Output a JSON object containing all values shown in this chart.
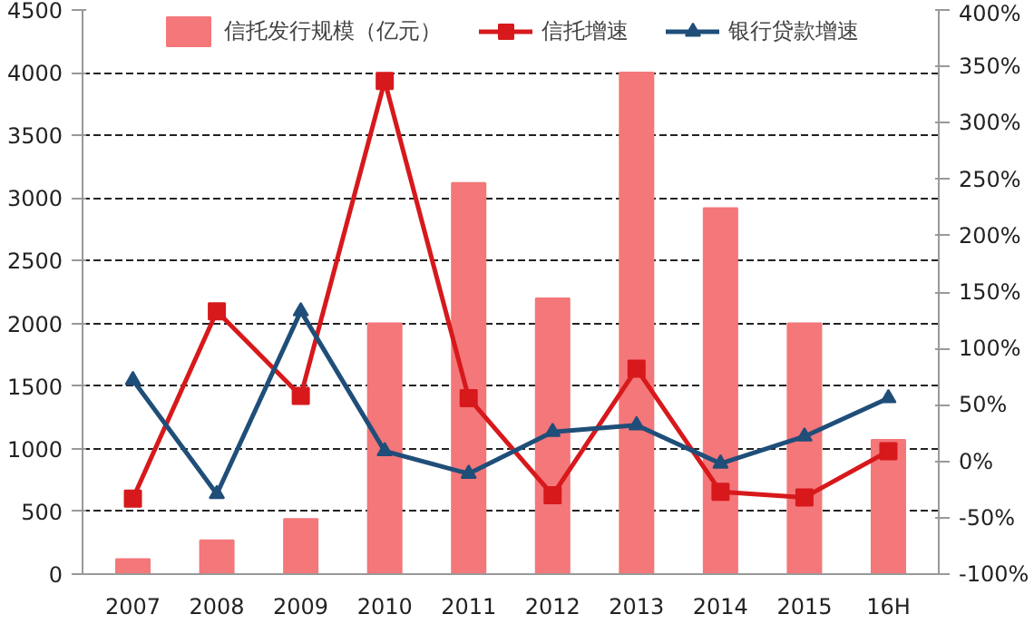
{
  "chart_data": {
    "type": "bar",
    "categories": [
      "2007",
      "2008",
      "2009",
      "2010",
      "2011",
      "2012",
      "2013",
      "2014",
      "2015",
      "16H"
    ],
    "series": [
      {
        "name": "信托发行规模（亿元）",
        "color": "#f4777a",
        "values": [
          120,
          270,
          440,
          2000,
          3120,
          2200,
          4000,
          2920,
          2000,
          1070
        ]
      },
      {
        "name": "信托增速",
        "type": "line",
        "axis": "y2",
        "marker": "square",
        "color": "#d7191c",
        "values": [
          -33,
          133,
          58,
          337,
          56,
          -30,
          82,
          -27,
          -32,
          9
        ]
      },
      {
        "name": "银行贷款增速",
        "type": "line",
        "axis": "y2",
        "marker": "triangle",
        "color": "#1f4e79",
        "values": [
          72,
          -29,
          133,
          9,
          -11,
          26,
          32,
          -2,
          22,
          56
        ]
      }
    ],
    "ylim": [
      0,
      4500
    ],
    "yticks": [
      0,
      500,
      1000,
      1500,
      2000,
      2500,
      3000,
      3500,
      4000,
      4500
    ],
    "y2lim": [
      -100,
      400
    ],
    "y2ticks": [
      {
        "value": -100,
        "label": "-100%"
      },
      {
        "value": -50,
        "label": "-50%"
      },
      {
        "value": 0,
        "label": "0%"
      },
      {
        "value": 50,
        "label": "50%"
      },
      {
        "value": 100,
        "label": "100%"
      },
      {
        "value": 150,
        "label": "150%"
      },
      {
        "value": 200,
        "label": "200%"
      },
      {
        "value": 250,
        "label": "250%"
      },
      {
        "value": 300,
        "label": "300%"
      },
      {
        "value": 350,
        "label": "350%"
      },
      {
        "value": 400,
        "label": "400%"
      }
    ],
    "grid": "y",
    "legend": "top"
  }
}
